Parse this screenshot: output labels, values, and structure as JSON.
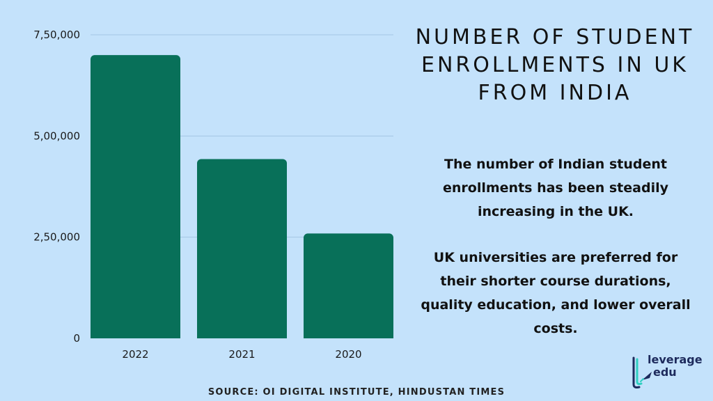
{
  "title": "NUMBER OF STUDENT ENROLLMENTS IN UK FROM INDIA",
  "paragraphs": [
    "The number of Indian student enrollments has been steadily increasing in the UK.",
    "UK universities are preferred for their shorter course durations, quality education, and lower overall costs."
  ],
  "source": "SOURCE: OI DIGITAL INSTITUTE, HINDUSTAN TIMES",
  "logo": {
    "line1": "leverage",
    "line2": "edu"
  },
  "colors": {
    "background": "#c4e2fb",
    "bar": "#087059",
    "grid": "#a4c6e4",
    "logo_text": "#1d2a5c",
    "logo_accent": "#2ecfc0"
  },
  "icons": [
    "leverage-edu-logo-mark",
    "rocket-icon"
  ],
  "chart_data": {
    "type": "bar",
    "categories": [
      "2022",
      "2021",
      "2020"
    ],
    "values": [
      700000,
      443000,
      259000
    ],
    "ylim": [
      0,
      750000
    ],
    "yticks": [
      0,
      250000,
      500000,
      750000
    ],
    "ytick_labels": [
      "0",
      "2,50,000",
      "5,00,000",
      "7,50,000"
    ],
    "title": "",
    "xlabel": "",
    "ylabel": "",
    "grid": true
  }
}
